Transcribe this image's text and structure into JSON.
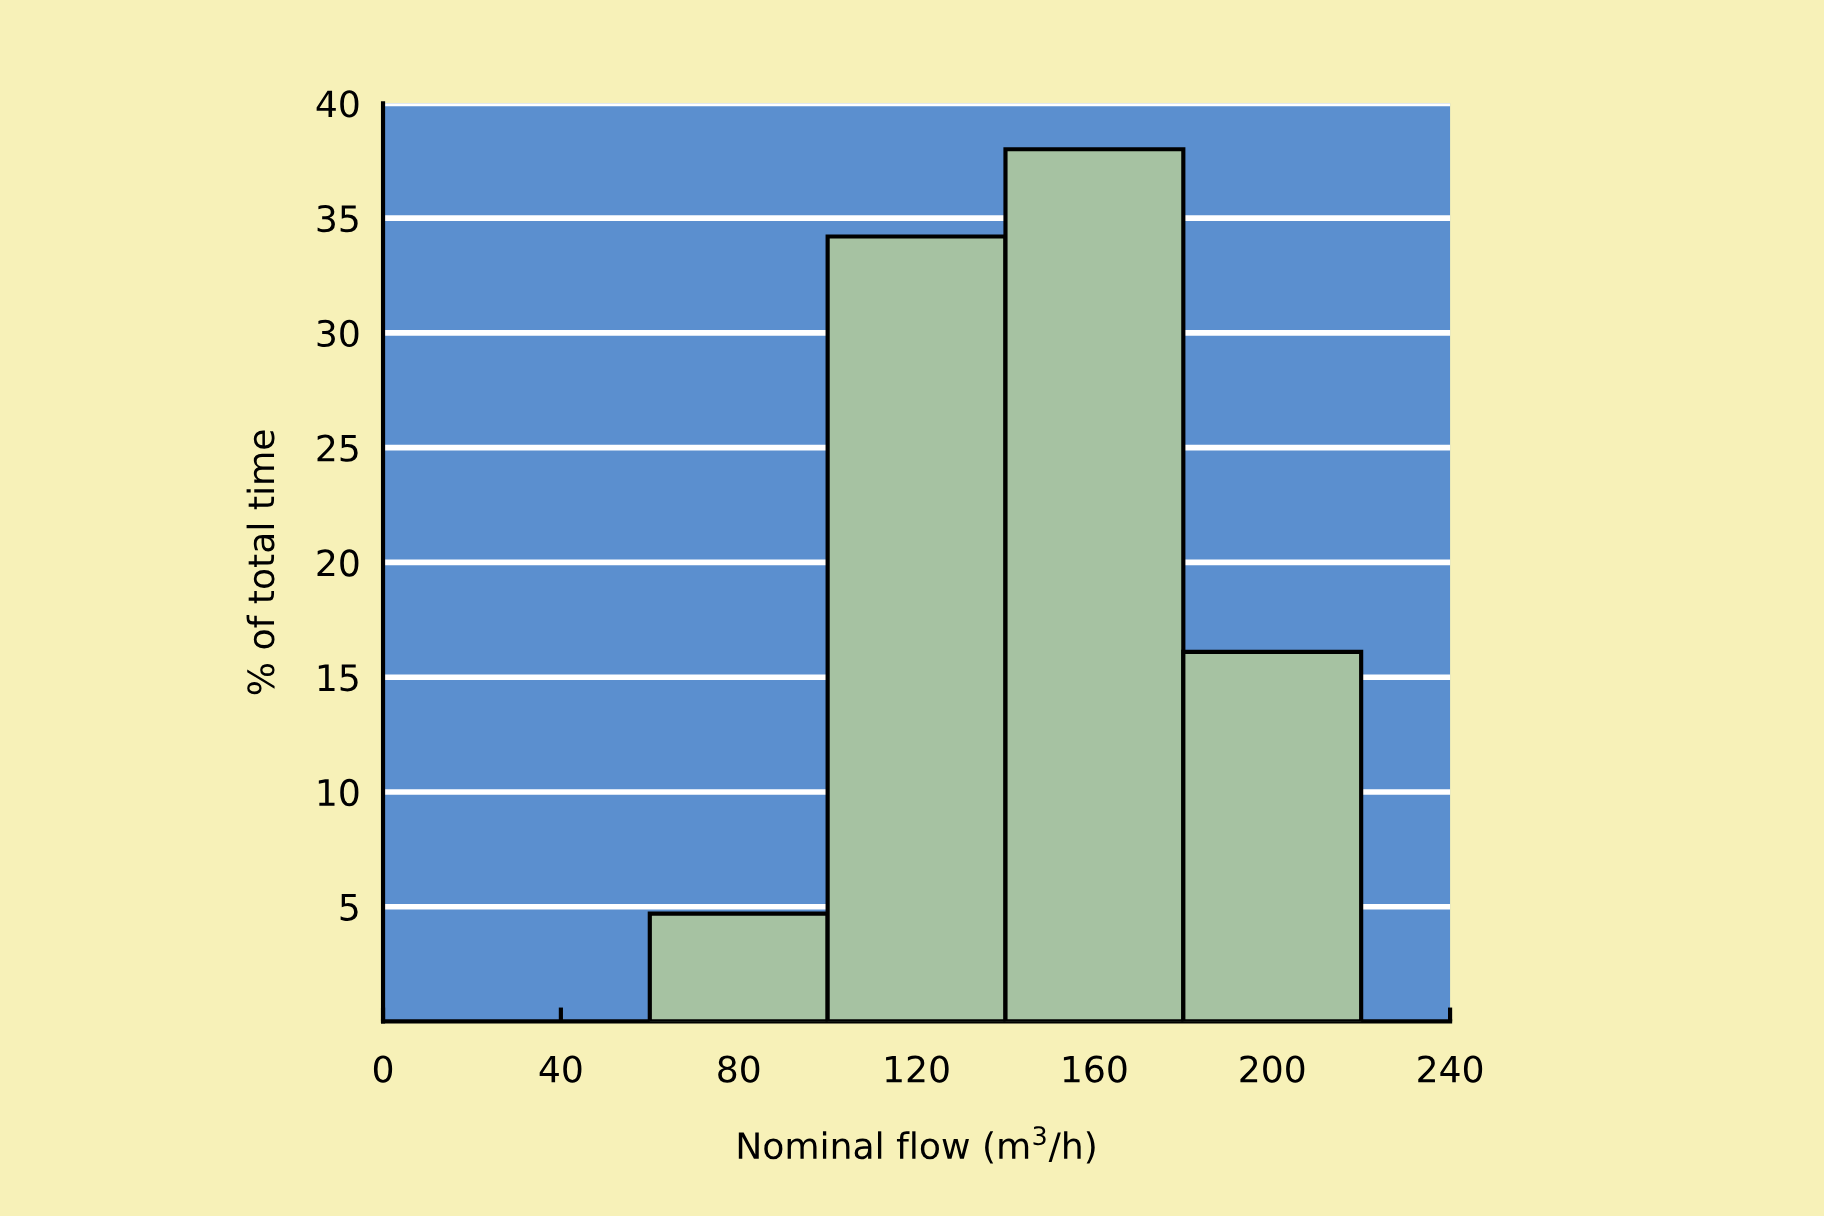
{
  "chart_data": {
    "type": "histogram",
    "xlabel": "Nominal flow (m$^{3}$/h)",
    "ylabel": "% of total time",
    "bins": [
      60,
      100,
      140,
      180,
      220
    ],
    "values": [
      4.7,
      34.2,
      38,
      16.1
    ],
    "color": "#a6c2a2",
    "xlim": [
      0,
      240
    ],
    "xticks": [
      0,
      40,
      80,
      120,
      160,
      200,
      240
    ],
    "ylim": [
      0,
      40
    ],
    "yticks": [
      5,
      10,
      15,
      20,
      25,
      30,
      35,
      40
    ],
    "grid": "y"
  }
}
